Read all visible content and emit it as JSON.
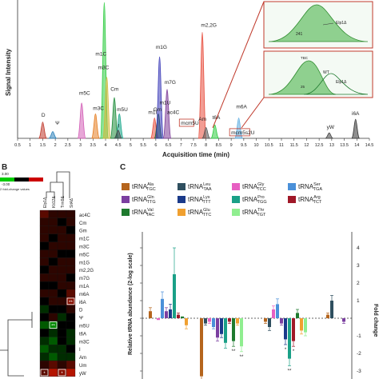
{
  "panel_labels": {
    "b": "B",
    "c": "C"
  },
  "chromatogram": {
    "type": "line",
    "xlabel": "Acquisition time (min)",
    "ylabel": "Signal Intensity",
    "xlim": [
      0.5,
      14.5
    ],
    "ticks": [
      "0.5",
      "1",
      "1.5",
      "2",
      "2.5",
      "3",
      "3.5",
      "4",
      "4.5",
      "5",
      "5.5",
      "6",
      "6.5",
      "7",
      "7.5",
      "8",
      "8.5",
      "9",
      "9.5",
      "10",
      "10.5",
      "11",
      "11.5",
      "12",
      "12.5",
      "13",
      "13.5",
      "14",
      "14.5"
    ],
    "peaks": [
      {
        "label": "D",
        "x": 1.5,
        "h": 0.12,
        "color": "#c0392b",
        "lx": 1.45,
        "ly": 0.16
      },
      {
        "label": "Ψ",
        "x": 1.9,
        "h": 0.05,
        "color": "#2980b9",
        "lx": 2.0,
        "ly": 0.1
      },
      {
        "label": "m5C",
        "x": 3.05,
        "h": 0.26,
        "color": "#d35fb7",
        "lx": 2.95,
        "ly": 0.32
      },
      {
        "label": "m3C",
        "x": 3.6,
        "h": 0.18,
        "color": "#e67e22",
        "lx": 3.5,
        "ly": 0.21
      },
      {
        "label": "m3C",
        "x": 3.95,
        "h": 1.0,
        "color": "#2ecc40",
        "lx": 3.7,
        "ly": 0.51
      },
      {
        "label": "m1C",
        "x": 4.05,
        "h": 0.45,
        "color": "#d4b83a",
        "lx": 3.6,
        "ly": 0.61
      },
      {
        "label": "Cm",
        "x": 4.35,
        "h": 0.3,
        "color": "#1e8c3a",
        "lx": 4.2,
        "ly": 0.35
      },
      {
        "label": "m5U",
        "x": 4.55,
        "h": 0.18,
        "color": "#17a589",
        "lx": 4.45,
        "ly": 0.2
      },
      {
        "label": "I",
        "x": 4.5,
        "h": 0.06,
        "color": "#444444",
        "lx": 4.5,
        "ly": 0.08
      },
      {
        "label": "m1I",
        "x": 5.95,
        "h": 0.15,
        "color": "#e74c3c",
        "lx": 5.7,
        "ly": 0.18
      },
      {
        "label": "Gm",
        "x": 6.1,
        "h": 0.18,
        "color": "#1e6b2e",
        "lx": 5.9,
        "ly": 0.2
      },
      {
        "label": "m1G",
        "x": 6.15,
        "h": 0.6,
        "color": "#3b3bb8",
        "lx": 6.0,
        "ly": 0.66
      },
      {
        "label": "m7G",
        "x": 6.45,
        "h": 0.36,
        "color": "#7d3c98",
        "lx": 6.35,
        "ly": 0.4
      },
      {
        "label": "m2,2G",
        "x": 7.85,
        "h": 0.78,
        "color": "#e74c3c",
        "lx": 7.8,
        "ly": 0.82
      },
      {
        "label": "Am",
        "x": 8.0,
        "h": 0.08,
        "color": "#555555",
        "lx": 7.7,
        "ly": 0.13
      },
      {
        "label": "t6A",
        "x": 8.35,
        "h": 0.1,
        "color": "#2ecc40",
        "lx": 8.25,
        "ly": 0.14
      },
      {
        "label": "m6A",
        "x": 9.3,
        "h": 0.15,
        "color": "#5dade2",
        "lx": 9.2,
        "ly": 0.22
      },
      {
        "label": "yW",
        "x": 12.9,
        "h": 0.04,
        "color": "#444444",
        "lx": 12.8,
        "ly": 0.07
      },
      {
        "label": "i6A",
        "x": 13.95,
        "h": 0.14,
        "color": "#333333",
        "lx": 13.8,
        "ly": 0.17
      }
    ],
    "extra_labels": [
      {
        "label": "m1U",
        "x": 6.15,
        "y": 0.25
      },
      {
        "label": "ac4C",
        "x": 6.45,
        "y": 0.18
      },
      {
        "label": "mcm5U",
        "x": 7.0,
        "y": 0.1
      },
      {
        "label": "mcm5s2U",
        "x": 9.0,
        "y": 0.03
      }
    ],
    "inset_top": {
      "label": "Elp1Δ",
      "value": "241"
    },
    "inset_bottom": {
      "label_wt": "WT",
      "label_mut": "Elp1Δ",
      "value_wt": "TBC",
      "value_mut": "25"
    }
  },
  "heatmap": {
    "legend_min": "-3.00",
    "legend_max": "3.00",
    "legend_label": "2 fold-change values",
    "columns": [
      "Elp1Δ",
      "Kti12Δ",
      "Trm9Δ",
      "Sit4Δ"
    ],
    "rows": [
      "ac4C",
      "Cm",
      "Gm",
      "m1C",
      "m3C",
      "m5C",
      "m1G",
      "m2,2G",
      "m7G",
      "m1A",
      "m6A",
      "i6A",
      "D",
      "Ψ",
      "m5U",
      "t6A",
      "m3C",
      "I",
      "Am",
      "Um",
      "yW"
    ],
    "cells": [
      [
        0.2,
        0.1,
        0.1,
        0.1
      ],
      [
        0.1,
        0.1,
        0.0,
        0.1
      ],
      [
        0.1,
        0.1,
        0.1,
        0.0
      ],
      [
        0.1,
        0.0,
        0.1,
        0.1
      ],
      [
        0.0,
        0.1,
        0.1,
        0.1
      ],
      [
        0.1,
        0.1,
        0.0,
        0.0
      ],
      [
        0.1,
        0.0,
        0.1,
        0.1
      ],
      [
        0.0,
        0.1,
        0.1,
        0.1
      ],
      [
        0.1,
        0.1,
        0.1,
        0.0
      ],
      [
        0.0,
        0.0,
        0.1,
        0.1
      ],
      [
        0.1,
        0.1,
        0.0,
        0.2
      ],
      [
        0.0,
        0.1,
        0.1,
        0.3
      ],
      [
        -0.1,
        0.0,
        0.0,
        0.1
      ],
      [
        0.0,
        0.1,
        -0.1,
        0.0
      ],
      [
        -0.2,
        -0.3,
        0.0,
        0.0
      ],
      [
        0.0,
        -0.1,
        0.0,
        -0.1
      ],
      [
        -0.1,
        -0.2,
        0.0,
        -0.1
      ],
      [
        -0.2,
        -0.1,
        -0.1,
        0.0
      ],
      [
        -0.1,
        -0.2,
        -0.1,
        -0.1
      ],
      [
        0.1,
        0.2,
        0.1,
        0.2
      ],
      [
        0.2,
        0.4,
        0.3,
        0.5
      ]
    ],
    "stars": [
      {
        "row": 11,
        "col": 3,
        "text": "**"
      },
      {
        "row": 14,
        "col": 1,
        "text": "**"
      },
      {
        "row": 20,
        "col": 0,
        "text": "*"
      },
      {
        "row": 20,
        "col": 2,
        "text": "*"
      }
    ]
  },
  "chart_data": {
    "type": "bar",
    "ylabel": "Relative tRNA abundance (2-log scale)",
    "y2label": "Fold change",
    "ylim": [
      -4,
      4
    ],
    "legend": [
      {
        "base": "tRNA",
        "sup": "Ala",
        "sub": "TGC",
        "color": "#b5651d"
      },
      {
        "base": "tRNA",
        "sup": "Leu",
        "sub": "TAA",
        "color": "#2f4f5f"
      },
      {
        "base": "tRNA",
        "sup": "Gly",
        "sub": "TCC",
        "color": "#e75fc2"
      },
      {
        "base": "tRNA",
        "sup": "Ser",
        "sub": "TGA",
        "color": "#4a90d9"
      },
      {
        "base": "tRNA",
        "sup": "Gln",
        "sub": "TTG",
        "color": "#7b3fa0"
      },
      {
        "base": "tRNA",
        "sup": "Lys",
        "sub": "TTT",
        "color": "#1a3a8a"
      },
      {
        "base": "tRNA",
        "sup": "Pro",
        "sub": "TGG",
        "color": "#1aa087"
      },
      {
        "base": "tRNA",
        "sup": "Arg",
        "sub": "TCT",
        "color": "#a01828"
      },
      {
        "base": "tRNA",
        "sup": "Val",
        "sub": "TAC",
        "color": "#1e7a2e"
      },
      {
        "base": "tRNA",
        "sup": "Glu",
        "sub": "TTC",
        "color": "#f0a030"
      },
      {
        "base": "tRNA",
        "sup": "Thr",
        "sub": "TGT",
        "color": "#90ee90"
      }
    ],
    "groups": [
      {
        "name": "Elp1Δ",
        "values": [
          0.4,
          0.0,
          -0.1,
          1.1,
          0.4,
          0.5,
          2.5,
          0.2,
          0.1,
          -0.4,
          0.0
        ],
        "errs": [
          0.2,
          0,
          0,
          0.4,
          0.2,
          0.3,
          1.5,
          0.1,
          0,
          0.2,
          0
        ]
      },
      {
        "name": "Elp1",
        "values": [
          -3.3,
          -0.3,
          -0.2,
          -0.5,
          -1.1,
          -0.9,
          -1.4,
          -0.2,
          -1.3,
          -0.3,
          -1.6
        ],
        "errs": [
          0.4,
          0.1,
          0.1,
          0.1,
          0.2,
          0.2,
          0.3,
          0.1,
          0.3,
          0.1,
          0.3
        ],
        "stars": [
          {
            "i": 0,
            "t": "**"
          },
          {
            "i": 10,
            "t": "**"
          },
          {
            "i": 8,
            "t": "**"
          }
        ]
      },
      {
        "name": "Kti12Δ",
        "values": [
          -0.2,
          -0.5,
          0.5,
          0.8,
          -0.3,
          -1.2,
          -2.3,
          -1.3,
          0.3,
          -0.7,
          -0.8
        ],
        "errs": [
          0.1,
          0.2,
          0.2,
          0.3,
          0.1,
          0.3,
          0.4,
          0.3,
          0.2,
          0.2,
          0.2
        ],
        "stars": [
          {
            "i": 6,
            "t": "**"
          },
          {
            "i": 7,
            "t": "*"
          },
          {
            "i": 5,
            "t": "*"
          }
        ]
      },
      {
        "name": "Sit4Δ",
        "values": [
          0.2,
          1.0,
          0.0,
          0.0,
          -0.2,
          0.0,
          0.0,
          0.0,
          0.0,
          0.0,
          0.0
        ],
        "errs": [
          0.1,
          0.3,
          0,
          0,
          0.1,
          0,
          0,
          0,
          0,
          0,
          0
        ]
      }
    ]
  }
}
